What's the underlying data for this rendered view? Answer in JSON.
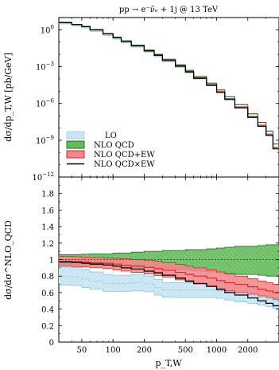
{
  "chart_data": {
    "type": "line",
    "title": "pp → e⁻ν̄ₑ + 1j @ 13 TeV",
    "xlabel": "p_T,W",
    "xscale": "log",
    "xlim": [
      30,
      4000
    ],
    "x_ticks": [
      50,
      100,
      200,
      500,
      1000,
      2000
    ],
    "x_tick_labels": [
      "50",
      "100",
      "200",
      "500",
      "1000",
      "2000"
    ],
    "bin_edges": [
      30,
      40,
      50,
      60,
      80,
      100,
      120,
      150,
      200,
      250,
      300,
      400,
      500,
      600,
      800,
      1000,
      1200,
      1500,
      2000,
      2500,
      3000,
      3500,
      4000
    ],
    "top_panel": {
      "ylabel": "dσ/dp_T,W [pb/GeV]",
      "yscale": "log",
      "ylim": [
        1e-12,
        10
      ],
      "y_ticks": [
        1,
        0.001,
        1e-06,
        1e-09,
        1e-12
      ],
      "y_tick_labels": [
        "10^0",
        "10^-3",
        "10^-6",
        "10^-9",
        "10^-12"
      ],
      "series": [
        {
          "name": "LO",
          "values": [
            3.16,
            2.24,
            1.45,
            0.776,
            0.355,
            0.178,
            0.0891,
            0.0407,
            0.0158,
            0.00661,
            0.00251,
            0.000891,
            0.000316,
            0.0001,
            2.82e-05,
            7.9e-06,
            2.2e-06,
            4.6e-07,
            7.9e-08,
            1.58e-08,
            2.8e-09,
            2.4e-10
          ]
        },
        {
          "name": "NLO QCD",
          "values": [
            3.98,
            2.82,
            1.91,
            1.05,
            0.501,
            0.251,
            0.126,
            0.0562,
            0.0224,
            0.01,
            0.00398,
            0.00141,
            0.000501,
            0.000158,
            4.47e-05,
            1.26e-05,
            3.55e-06,
            7.9e-07,
            1.41e-07,
            2.82e-08,
            5.6e-09,
            5e-10
          ]
        },
        {
          "name": "NLO QCD+EW",
          "values": [
            3.9,
            2.75,
            1.85,
            1.01,
            0.48,
            0.237,
            0.117,
            0.0517,
            0.0203,
            0.0089,
            0.00346,
            0.00119,
            0.000412,
            0.000126,
            3.45e-05,
            9.3e-06,
            2.5e-06,
            5.2e-07,
            8.9e-08,
            1.71e-08,
            3.2e-09,
            2.7e-10
          ]
        },
        {
          "name": "NLO QCD×EW",
          "values": [
            3.88,
            2.73,
            1.83,
            0.99,
            0.468,
            0.23,
            0.113,
            0.0495,
            0.0192,
            0.0084,
            0.00322,
            0.00109,
            0.00037,
            0.000112,
            3.02e-05,
            8e-06,
            2.1e-06,
            4.3e-07,
            7.2e-08,
            1.35e-08,
            2.5e-09,
            2e-10
          ]
        }
      ]
    },
    "bottom_panel": {
      "ylabel": "dσ/dσ^NLO_QCD",
      "ylim": [
        0,
        2
      ],
      "y_ticks": [
        0,
        0.2,
        0.4,
        0.6,
        0.8,
        1,
        1.2,
        1.4,
        1.6,
        1.8
      ],
      "y_tick_labels": [
        "0",
        "0.2",
        "0.4",
        "0.6",
        "0.8",
        "1",
        "1.2",
        "1.4",
        "1.6",
        "1.8"
      ],
      "series": [
        {
          "name": "LO",
          "central": [
            0.795,
            0.79,
            0.765,
            0.74,
            0.71,
            0.71,
            0.71,
            0.72,
            0.705,
            0.66,
            0.63,
            0.63,
            0.63,
            0.63,
            0.63,
            0.62,
            0.6,
            0.58,
            0.56,
            0.54,
            0.52,
            0.5
          ],
          "lower": [
            0.69,
            0.685,
            0.66,
            0.64,
            0.615,
            0.615,
            0.615,
            0.62,
            0.61,
            0.57,
            0.545,
            0.54,
            0.54,
            0.54,
            0.54,
            0.53,
            0.51,
            0.49,
            0.47,
            0.45,
            0.43,
            0.41
          ],
          "upper": [
            0.91,
            0.905,
            0.88,
            0.85,
            0.82,
            0.81,
            0.81,
            0.82,
            0.8,
            0.76,
            0.72,
            0.72,
            0.72,
            0.72,
            0.72,
            0.71,
            0.69,
            0.67,
            0.65,
            0.63,
            0.61,
            0.59
          ]
        },
        {
          "name": "NLO QCD",
          "central": [
            1.0,
            1.0,
            1.0,
            1.0,
            1.0,
            1.0,
            1.0,
            1.0,
            1.0,
            1.0,
            1.0,
            1.0,
            1.0,
            1.0,
            1.0,
            1.0,
            1.0,
            1.0,
            1.0,
            1.0,
            1.0,
            1.0
          ],
          "lower": [
            0.94,
            0.94,
            0.935,
            0.93,
            0.93,
            0.92,
            0.92,
            0.91,
            0.9,
            0.89,
            0.89,
            0.88,
            0.87,
            0.86,
            0.85,
            0.84,
            0.83,
            0.82,
            0.82,
            0.81,
            0.8,
            0.8
          ],
          "upper": [
            1.06,
            1.06,
            1.065,
            1.07,
            1.07,
            1.08,
            1.08,
            1.09,
            1.1,
            1.1,
            1.11,
            1.11,
            1.12,
            1.12,
            1.13,
            1.14,
            1.15,
            1.16,
            1.16,
            1.17,
            1.18,
            1.18
          ]
        },
        {
          "name": "NLO QCD+EW",
          "central": [
            0.98,
            0.975,
            0.97,
            0.96,
            0.955,
            0.945,
            0.93,
            0.92,
            0.905,
            0.89,
            0.87,
            0.845,
            0.82,
            0.8,
            0.775,
            0.745,
            0.72,
            0.7,
            0.67,
            0.64,
            0.62,
            0.6
          ],
          "lower": [
            0.92,
            0.915,
            0.91,
            0.9,
            0.89,
            0.875,
            0.86,
            0.845,
            0.825,
            0.805,
            0.785,
            0.755,
            0.73,
            0.705,
            0.68,
            0.65,
            0.62,
            0.6,
            0.58,
            0.56,
            0.54,
            0.52
          ],
          "upper": [
            1.04,
            1.035,
            1.03,
            1.025,
            1.02,
            1.015,
            1.01,
            1.0,
            0.99,
            0.98,
            0.96,
            0.94,
            0.92,
            0.9,
            0.875,
            0.85,
            0.825,
            0.8,
            0.77,
            0.74,
            0.72,
            0.7
          ]
        },
        {
          "name": "NLO QCD×EW",
          "central": [
            0.97,
            0.965,
            0.955,
            0.945,
            0.935,
            0.92,
            0.9,
            0.885,
            0.86,
            0.84,
            0.81,
            0.775,
            0.74,
            0.71,
            0.675,
            0.635,
            0.6,
            0.57,
            0.535,
            0.5,
            0.47,
            0.44
          ]
        }
      ]
    },
    "legend_position": "bottom-left of top panel"
  },
  "colors": {
    "lo_fill": "#cfe8f3",
    "lo_line": "#8fc3dc",
    "qcd_fill": "#5fb85a",
    "qcd_line": "#1e6b1e",
    "qcdew_fill": "#f2868a",
    "qcdew_line": "#d62a2f",
    "qcdxew_line": "#000000"
  },
  "legend": {
    "lo": "LO",
    "nlo_qcd": "NLO QCD",
    "nlo_qcd_ew": "NLO QCD+EW",
    "nlo_qcd_x_ew": "NLO QCD×EW"
  }
}
